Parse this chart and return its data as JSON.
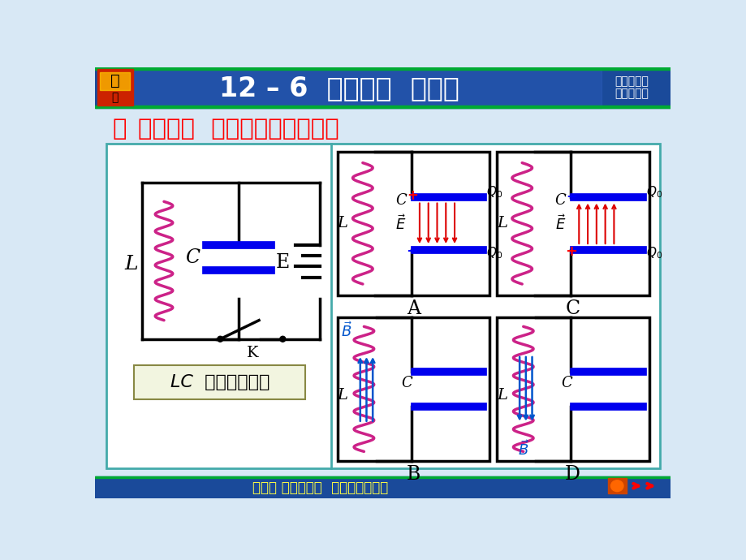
{
  "title": "12 – 6  电磁振荡  电磁波",
  "subtitle_right1": "物理学教程",
  "subtitle_right2": "（第二版）",
  "section_title": "一   振荡电路  无阻尼自由电磁振荡",
  "lc_label": "LC  电磁振荡电路",
  "footer": "第十二 章电磁感应  电磁场和电磁波",
  "bg_color": "#d8e8f5",
  "header_bg": "#1a4a9a",
  "header_green_line": "#00aa33",
  "footer_bg": "#1a4a9a",
  "panel_bg": "#ffffff",
  "panel_border": "#44aaaa",
  "coil_color": "#cc2288",
  "cap_color": "#0000ee",
  "arrow_red": "#dd0000",
  "arrow_blue": "#0055cc"
}
